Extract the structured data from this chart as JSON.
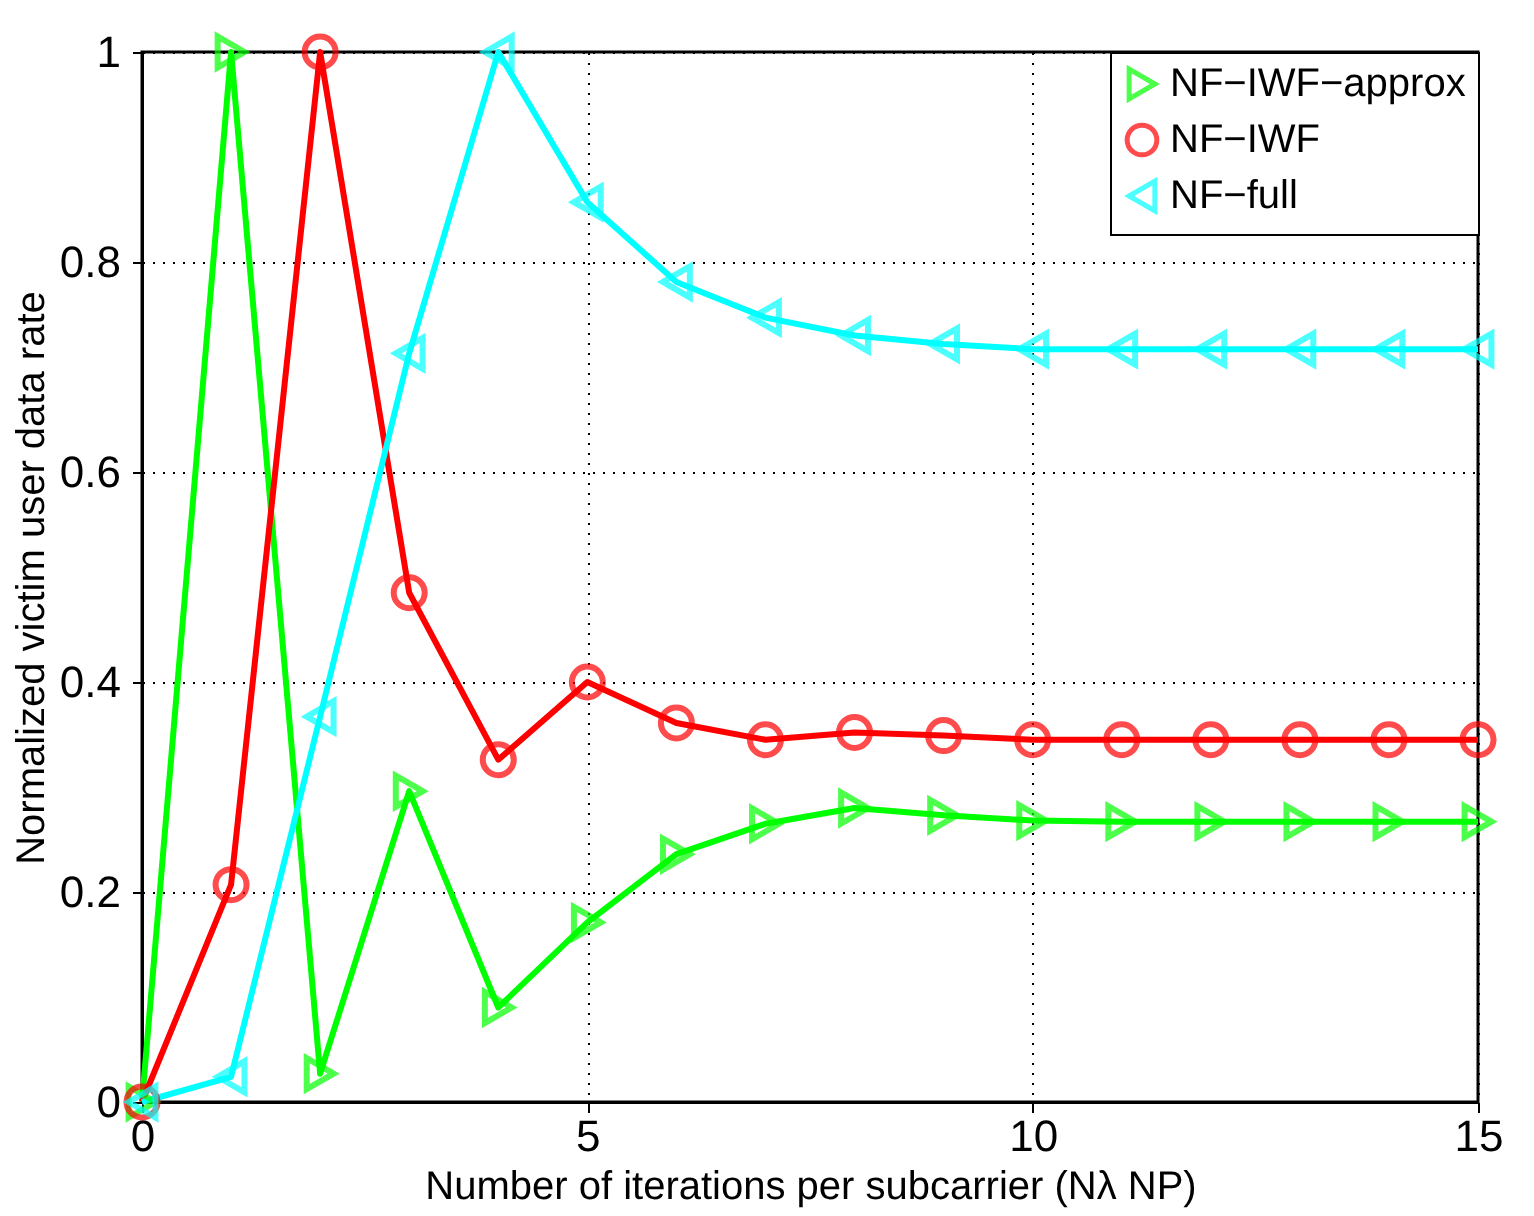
{
  "chart_data": {
    "type": "line",
    "xlabel": "Number of iterations per subcarrier (Nλ NP)",
    "ylabel": "Normalized victim user data rate",
    "x": [
      0,
      1,
      2,
      3,
      4,
      5,
      6,
      7,
      8,
      9,
      10,
      11,
      12,
      13,
      14,
      15
    ],
    "series": [
      {
        "name": "NF−IWF−approx",
        "color": "#00ff00",
        "marker": "triangle-right",
        "values": [
          0,
          1,
          0.027,
          0.296,
          0.09,
          0.171,
          0.236,
          0.265,
          0.28,
          0.273,
          0.268,
          0.267,
          0.267,
          0.267,
          0.267,
          0.267
        ]
      },
      {
        "name": "NF−IWF",
        "color": "#ff0000",
        "marker": "circle",
        "values": [
          0,
          0.207,
          1,
          0.485,
          0.326,
          0.4,
          0.361,
          0.345,
          0.352,
          0.349,
          0.345,
          0.345,
          0.345,
          0.345,
          0.345,
          0.345
        ]
      },
      {
        "name": "NF−full",
        "color": "#00ffff",
        "marker": "triangle-left",
        "values": [
          0,
          0.024,
          0.367,
          0.713,
          1,
          0.857,
          0.781,
          0.747,
          0.73,
          0.722,
          0.717,
          0.717,
          0.717,
          0.717,
          0.717,
          0.717
        ]
      }
    ],
    "xlim": [
      0,
      15
    ],
    "ylim": [
      0,
      1
    ],
    "xticks": [
      0,
      5,
      10,
      15
    ],
    "yticks": [
      0,
      0.2,
      0.4,
      0.6,
      0.8,
      1
    ],
    "grid": true,
    "legend": "top right",
    "line_style": "solid"
  }
}
